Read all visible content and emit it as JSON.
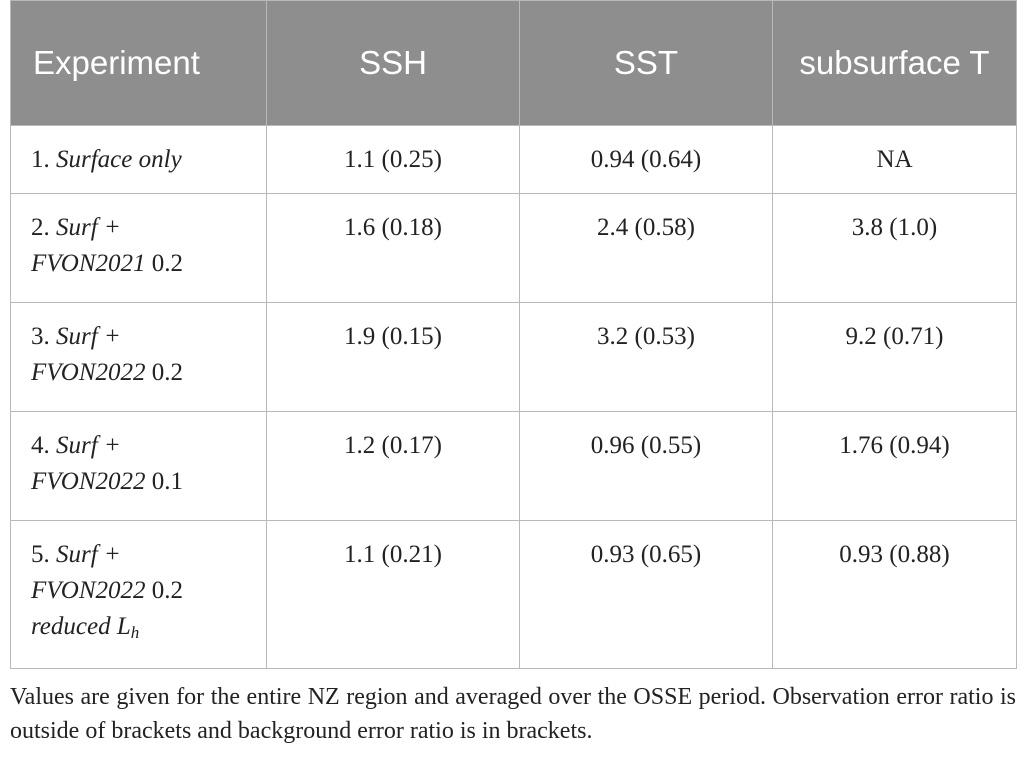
{
  "table": {
    "headers": [
      "Experiment",
      "SSH",
      "SST",
      "subsurface T"
    ],
    "rows": [
      {
        "num": "1.",
        "name_lines": [
          "Surface only"
        ],
        "suffix": "",
        "ssh": "1.1 (0.25)",
        "sst": "0.94 (0.64)",
        "subsurface_t": "NA"
      },
      {
        "num": "2.",
        "name_lines": [
          "Surf +",
          "FVON2021"
        ],
        "suffix": "0.2",
        "ssh": "1.6 (0.18)",
        "sst": "2.4 (0.58)",
        "subsurface_t": "3.8 (1.0)"
      },
      {
        "num": "3.",
        "name_lines": [
          "Surf +",
          "FVON2022"
        ],
        "suffix": "0.2",
        "ssh": "1.9 (0.15)",
        "sst": "3.2 (0.53)",
        "subsurface_t": "9.2 (0.71)"
      },
      {
        "num": "4.",
        "name_lines": [
          "Surf +",
          "FVON2022"
        ],
        "suffix": "0.1",
        "ssh": "1.2 (0.17)",
        "sst": "0.96 (0.55)",
        "subsurface_t": "1.76 (0.94)"
      },
      {
        "num": "5.",
        "name_lines": [
          "Surf +",
          "FVON2022"
        ],
        "suffix": "0.2",
        "extra_line": "reduced",
        "extra_symbol": "L",
        "extra_sub": "h",
        "ssh": "1.1 (0.21)",
        "sst": "0.93 (0.65)",
        "subsurface_t": "0.93 (0.88)"
      }
    ]
  },
  "footnote": "Values are given for the entire NZ region and averaged over the OSSE period. Observation error ratio is outside of brackets and background error ratio is in brackets.",
  "colors": {
    "header_bg": "#8e8e8e",
    "header_text": "#ffffff",
    "border": "#b9b9b9",
    "body_text": "#222222"
  }
}
